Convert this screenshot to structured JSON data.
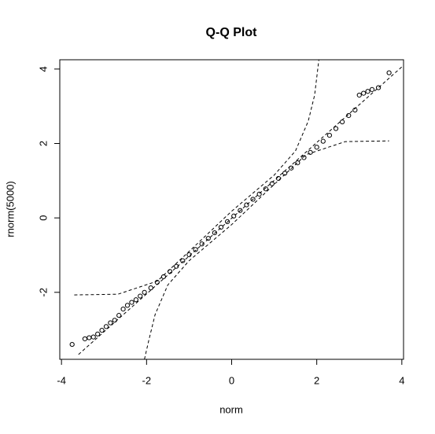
{
  "chart_data": {
    "type": "scatter",
    "title": "Q-Q Plot",
    "x_label": "norm",
    "y_label": "rnorm(5000)",
    "xlim": [
      -4.04,
      4.04
    ],
    "ylim": [
      -3.8,
      4.25
    ],
    "xticks": [
      -4,
      -2,
      0,
      2,
      4
    ],
    "yticks": [
      -2,
      0,
      2,
      4
    ],
    "series": [
      {
        "style": "points",
        "color": "#000000",
        "x": [
          -3.75,
          -3.45,
          -3.35,
          -3.25,
          -3.15,
          -3.05,
          -2.95,
          -2.85,
          -2.75,
          -2.65,
          -2.55,
          -2.45,
          -2.35,
          -2.25,
          -2.15,
          -2.05,
          -1.9,
          -1.75,
          -1.6,
          -1.45,
          -1.3,
          -1.15,
          -1.0,
          -0.85,
          -0.7,
          -0.55,
          -0.4,
          -0.25,
          -0.1,
          0.05,
          0.2,
          0.35,
          0.5,
          0.65,
          0.8,
          0.95,
          1.1,
          1.25,
          1.4,
          1.55,
          1.7,
          1.85,
          2.0,
          2.15,
          2.3,
          2.45,
          2.6,
          2.75,
          2.9,
          3.0,
          3.1,
          3.2,
          3.3,
          3.45,
          3.7
        ],
        "values": [
          -3.4,
          -3.25,
          -3.22,
          -3.2,
          -3.12,
          -3.02,
          -2.92,
          -2.82,
          -2.75,
          -2.62,
          -2.45,
          -2.35,
          -2.27,
          -2.2,
          -2.1,
          -2.0,
          -1.88,
          -1.73,
          -1.58,
          -1.44,
          -1.3,
          -1.15,
          -0.99,
          -0.85,
          -0.7,
          -0.55,
          -0.4,
          -0.25,
          -0.1,
          0.05,
          0.2,
          0.35,
          0.5,
          0.64,
          0.78,
          0.92,
          1.06,
          1.2,
          1.34,
          1.48,
          1.62,
          1.76,
          1.9,
          2.06,
          2.22,
          2.4,
          2.58,
          2.75,
          2.9,
          3.3,
          3.35,
          3.4,
          3.45,
          3.5,
          3.9
        ]
      },
      {
        "style": "dashed",
        "color": "#000000",
        "x": [
          -3.6,
          4.04
        ],
        "values": [
          -3.67,
          4.1
        ]
      },
      {
        "style": "dashed",
        "color": "#000000",
        "x": [
          -3.7,
          -2.67,
          -1.75,
          -1.0,
          0,
          1.0,
          1.5,
          1.8,
          1.95,
          2.05
        ],
        "values": [
          -2.07,
          -2.05,
          -1.7,
          -0.9,
          0.18,
          1.15,
          1.8,
          2.6,
          3.3,
          4.25
        ]
      },
      {
        "style": "dashed",
        "color": "#000000",
        "x": [
          -2.05,
          -1.95,
          -1.8,
          -1.5,
          -1.0,
          0,
          1.0,
          1.75,
          2.67,
          3.7
        ],
        "values": [
          -3.8,
          -3.3,
          -2.6,
          -1.8,
          -1.15,
          -0.18,
          0.9,
          1.7,
          2.05,
          2.07
        ]
      }
    ]
  }
}
